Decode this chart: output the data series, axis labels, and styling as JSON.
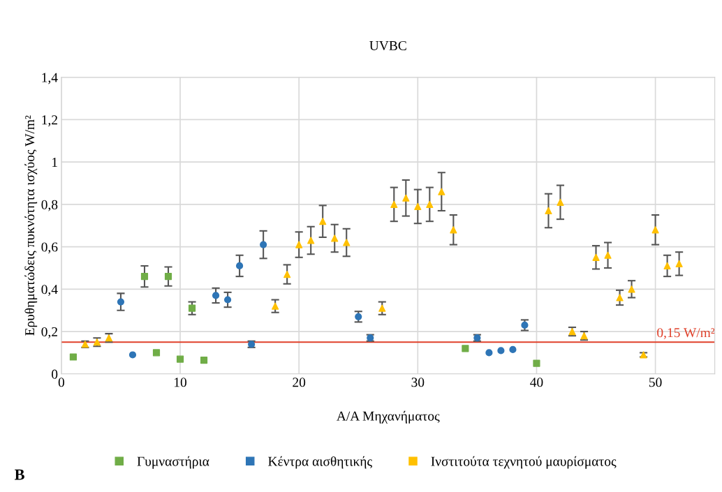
{
  "chart_data": {
    "type": "scatter",
    "title": "UVBC",
    "xlabel": "Α/Α Μηχανήματος",
    "ylabel": "Ερυθηματώδεις πυκνότητα ισχύος W/m²",
    "xlim": [
      0,
      55
    ],
    "xticks": [
      0,
      10,
      20,
      30,
      40,
      50
    ],
    "ylim": [
      0,
      1.4
    ],
    "yticks": [
      0,
      {
        "value": 0.2,
        "label": "0,2"
      },
      {
        "value": 0.4,
        "label": "0,4"
      },
      {
        "value": 0.6,
        "label": "0,6"
      },
      {
        "value": 0.8,
        "label": "0,8"
      },
      1,
      {
        "value": 1.2,
        "label": "1,2"
      },
      {
        "value": 1.4,
        "label": "1,4"
      }
    ],
    "grid": true,
    "legend": "bottom",
    "ref_lines": [
      {
        "axis": "y",
        "value": 0.15,
        "label": "0,15 W/m²",
        "color": "#e0402a"
      }
    ],
    "annotations": [
      "B"
    ],
    "series": [
      {
        "name": "Γυμναστήρια",
        "color": "#70ad47",
        "marker": "square",
        "x": [
          1,
          7,
          8,
          9,
          10,
          11,
          12,
          34,
          40
        ],
        "values": [
          0.08,
          0.46,
          0.1,
          0.46,
          0.07,
          0.31,
          0.065,
          0.12,
          0.05
        ],
        "errors": [
          null,
          0.05,
          null,
          0.045,
          null,
          0.03,
          null,
          null,
          null
        ]
      },
      {
        "name": "Κέντρα αισθητικής",
        "color": "#2e75b6",
        "marker": "circle",
        "x": [
          5,
          6,
          13,
          14,
          15,
          16,
          17,
          25,
          26,
          35,
          36,
          37,
          38,
          39
        ],
        "values": [
          0.34,
          0.09,
          0.37,
          0.35,
          0.51,
          0.14,
          0.61,
          0.27,
          0.17,
          0.17,
          0.1,
          0.11,
          0.115,
          0.23
        ],
        "errors": [
          0.04,
          null,
          0.035,
          0.035,
          0.05,
          0.015,
          0.065,
          0.025,
          0.015,
          0.015,
          null,
          null,
          null,
          0.025
        ]
      },
      {
        "name": "Ινστιτούτα τεχνητού μαυρίσματος",
        "color": "#ffc000",
        "marker": "triangle",
        "x": [
          2,
          3,
          4,
          18,
          19,
          20,
          21,
          22,
          23,
          24,
          27,
          28,
          29,
          30,
          31,
          32,
          33,
          41,
          42,
          43,
          44,
          45,
          46,
          47,
          48,
          49,
          50,
          51,
          52
        ],
        "values": [
          0.14,
          0.15,
          0.17,
          0.32,
          0.47,
          0.61,
          0.63,
          0.72,
          0.64,
          0.62,
          0.31,
          0.8,
          0.83,
          0.79,
          0.8,
          0.86,
          0.68,
          0.77,
          0.81,
          0.2,
          0.18,
          0.55,
          0.56,
          0.36,
          0.4,
          0.09,
          0.68,
          0.51,
          0.52
        ],
        "errors": [
          0.015,
          0.02,
          0.02,
          0.03,
          0.045,
          0.06,
          0.065,
          0.075,
          0.065,
          0.065,
          0.03,
          0.08,
          0.085,
          0.08,
          0.08,
          0.09,
          0.07,
          0.08,
          0.08,
          0.02,
          0.02,
          0.055,
          0.06,
          0.035,
          0.04,
          0.01,
          0.07,
          0.05,
          0.055
        ]
      }
    ]
  }
}
